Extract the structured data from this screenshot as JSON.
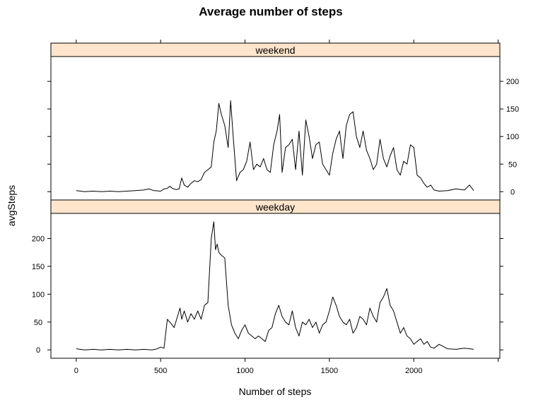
{
  "chart_data": {
    "type": "line",
    "title": "Average number of steps",
    "xlabel": "Number of steps",
    "ylabel": "avgSteps",
    "xlim": [
      -150,
      2510
    ],
    "ylim": [
      -15,
      245
    ],
    "x_ticks": [
      0,
      500,
      1000,
      1500,
      2000
    ],
    "y_ticks": [
      0,
      50,
      100,
      150,
      200
    ],
    "grid": false,
    "legend": "none",
    "panels": [
      {
        "name": "weekend",
        "y_axis_side": "right",
        "x": [
          0,
          25,
          50,
          100,
          150,
          200,
          250,
          300,
          350,
          400,
          430,
          460,
          500,
          520,
          540,
          555,
          570,
          590,
          610,
          625,
          640,
          660,
          680,
          700,
          720,
          740,
          760,
          780,
          800,
          815,
          830,
          845,
          860,
          880,
          900,
          915,
          930,
          950,
          970,
          990,
          1010,
          1030,
          1050,
          1070,
          1090,
          1110,
          1130,
          1150,
          1170,
          1190,
          1205,
          1220,
          1240,
          1260,
          1280,
          1300,
          1320,
          1340,
          1360,
          1380,
          1400,
          1420,
          1440,
          1460,
          1480,
          1500,
          1520,
          1540,
          1560,
          1580,
          1600,
          1620,
          1640,
          1660,
          1680,
          1700,
          1720,
          1740,
          1760,
          1780,
          1800,
          1820,
          1840,
          1860,
          1880,
          1900,
          1920,
          1940,
          1960,
          1980,
          2000,
          2020,
          2040,
          2060,
          2080,
          2100,
          2120,
          2150,
          2200,
          2250,
          2300,
          2330,
          2355
        ],
        "values": [
          2,
          1,
          0,
          1,
          0,
          1,
          0,
          1,
          2,
          3,
          5,
          2,
          1,
          5,
          6,
          10,
          6,
          4,
          5,
          25,
          12,
          8,
          15,
          20,
          18,
          22,
          35,
          40,
          45,
          90,
          110,
          160,
          140,
          120,
          80,
          165,
          100,
          20,
          35,
          40,
          55,
          90,
          40,
          50,
          45,
          60,
          40,
          35,
          85,
          110,
          140,
          35,
          80,
          85,
          95,
          40,
          110,
          30,
          130,
          100,
          60,
          85,
          90,
          50,
          40,
          30,
          70,
          95,
          110,
          60,
          120,
          140,
          145,
          100,
          80,
          110,
          75,
          60,
          40,
          50,
          95,
          60,
          45,
          65,
          80,
          40,
          30,
          55,
          50,
          85,
          80,
          30,
          25,
          15,
          8,
          12,
          3,
          1,
          2,
          5,
          3,
          12,
          2
        ]
      },
      {
        "name": "weekday",
        "y_axis_side": "left",
        "x": [
          0,
          25,
          50,
          100,
          150,
          200,
          250,
          300,
          350,
          400,
          450,
          480,
          500,
          520,
          540,
          560,
          580,
          600,
          615,
          625,
          640,
          660,
          680,
          700,
          720,
          740,
          760,
          780,
          800,
          815,
          825,
          835,
          845,
          860,
          880,
          900,
          920,
          940,
          960,
          980,
          1000,
          1020,
          1040,
          1060,
          1080,
          1100,
          1120,
          1140,
          1160,
          1180,
          1200,
          1220,
          1240,
          1260,
          1280,
          1300,
          1320,
          1340,
          1360,
          1380,
          1400,
          1420,
          1440,
          1460,
          1480,
          1500,
          1520,
          1540,
          1560,
          1580,
          1600,
          1620,
          1640,
          1660,
          1680,
          1700,
          1720,
          1740,
          1760,
          1780,
          1800,
          1820,
          1840,
          1860,
          1880,
          1900,
          1920,
          1940,
          1960,
          1980,
          2000,
          2020,
          2040,
          2060,
          2080,
          2100,
          2120,
          2150,
          2200,
          2250,
          2300,
          2330,
          2355
        ],
        "values": [
          2,
          1,
          0,
          1,
          0,
          1,
          0,
          1,
          0,
          1,
          0,
          2,
          5,
          3,
          55,
          48,
          40,
          60,
          75,
          55,
          70,
          50,
          65,
          55,
          70,
          55,
          80,
          85,
          200,
          230,
          180,
          190,
          175,
          170,
          165,
          80,
          45,
          30,
          20,
          35,
          45,
          30,
          25,
          20,
          25,
          20,
          15,
          35,
          40,
          65,
          80,
          60,
          50,
          45,
          70,
          40,
          25,
          50,
          45,
          55,
          40,
          50,
          30,
          45,
          50,
          70,
          95,
          80,
          60,
          50,
          45,
          55,
          30,
          40,
          60,
          55,
          45,
          75,
          60,
          50,
          85,
          95,
          110,
          80,
          70,
          50,
          30,
          40,
          25,
          20,
          10,
          15,
          20,
          10,
          15,
          5,
          3,
          10,
          2,
          1,
          3,
          2,
          1
        ]
      }
    ]
  }
}
